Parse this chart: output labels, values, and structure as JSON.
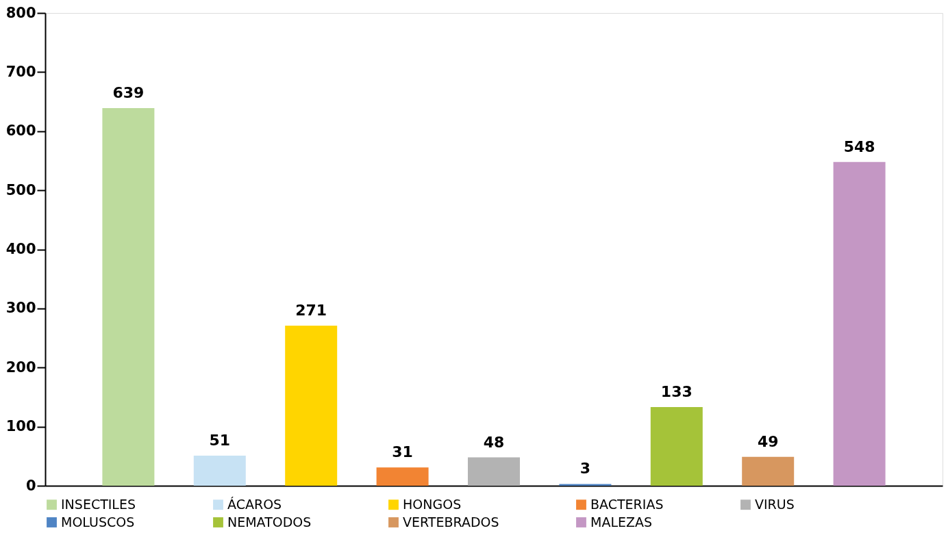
{
  "chart_data": {
    "type": "bar",
    "stacked": true,
    "categories": [
      null,
      null,
      null,
      null,
      null,
      null,
      null,
      null,
      null
    ],
    "series": [
      {
        "name": "INSECTILES",
        "color": "#bddb9d",
        "values": [
          639,
          null,
          null,
          null,
          null,
          null,
          null,
          null,
          null
        ]
      },
      {
        "name": "ÁCAROS",
        "color": "#c7e2f4",
        "values": [
          null,
          51,
          null,
          null,
          null,
          null,
          null,
          null,
          null
        ]
      },
      {
        "name": "HONGOS",
        "color": "#ffd500",
        "values": [
          null,
          null,
          271,
          null,
          null,
          null,
          null,
          null,
          null
        ]
      },
      {
        "name": "BACTERIAS",
        "color": "#f28433",
        "values": [
          null,
          null,
          null,
          31,
          null,
          null,
          null,
          null,
          null
        ]
      },
      {
        "name": "VIRUS",
        "color": "#b3b3b3",
        "values": [
          null,
          null,
          null,
          null,
          48,
          null,
          null,
          null,
          null
        ]
      },
      {
        "name": "MOLUSCOS",
        "color": "#4f84c4",
        "values": [
          null,
          null,
          null,
          null,
          null,
          3,
          null,
          null,
          null
        ]
      },
      {
        "name": "NEMATODOS",
        "color": "#a5c339",
        "values": [
          null,
          null,
          null,
          null,
          null,
          null,
          133,
          null,
          null
        ]
      },
      {
        "name": "VERTEBRADOS",
        "color": "#d7975f",
        "values": [
          null,
          null,
          null,
          null,
          null,
          null,
          null,
          49,
          null
        ]
      },
      {
        "name": "MALEZAS",
        "color": "#c497c4",
        "values": [
          null,
          null,
          null,
          null,
          null,
          null,
          null,
          null,
          548
        ]
      }
    ],
    "ylim": [
      0,
      800
    ],
    "yticks": [
      0,
      100,
      200,
      300,
      400,
      500,
      600,
      700,
      800
    ],
    "grid": false,
    "legend": "bottom",
    "data_labels": true,
    "tick_labels": "y"
  }
}
